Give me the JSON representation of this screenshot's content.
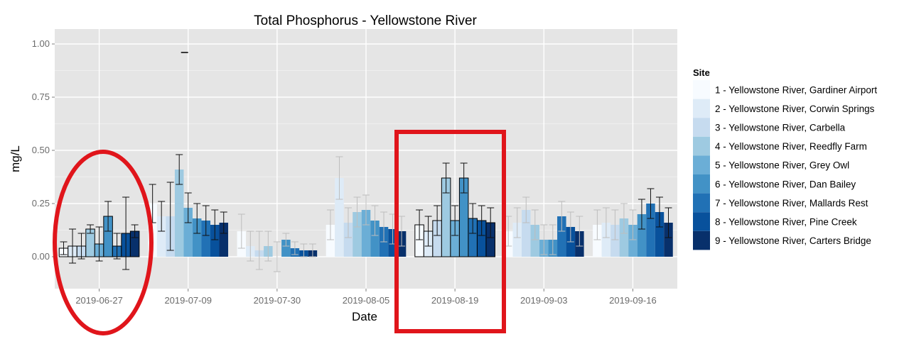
{
  "chart_data": {
    "type": "bar",
    "title": "Total Phosphorus - Yellowstone River",
    "xlabel": "Date",
    "ylabel": "mg/L",
    "ylim": [
      -0.15,
      1.07
    ],
    "yticks": [
      0.0,
      0.25,
      0.5,
      0.75,
      1.0
    ],
    "ytick_labels": [
      "0.00",
      "0.25",
      "0.50",
      "0.75",
      "1.00"
    ],
    "grid": true,
    "legend_title": "Site",
    "legend_position": "right",
    "categories": [
      "2019-06-27",
      "2019-07-09",
      "2019-07-30",
      "2019-08-05",
      "2019-08-19",
      "2019-09-03",
      "2019-09-16"
    ],
    "series": [
      {
        "name": "1 - Yellowstone River, Gardiner Airport",
        "color": "#f7fbff",
        "values": [
          0.04,
          0.25,
          0.12,
          0.15,
          0.15,
          0.12,
          0.15
        ],
        "errors": [
          0.03,
          0.09,
          0.08,
          0.07,
          0.07,
          0.07,
          0.07
        ]
      },
      {
        "name": "2 - Yellowstone River, Corwin Springs",
        "color": "#deebf7",
        "values": [
          0.05,
          0.19,
          0.05,
          0.37,
          0.12,
          0.16,
          0.16
        ],
        "errors": [
          0.08,
          0.07,
          0.07,
          0.1,
          0.07,
          0.07,
          0.07
        ]
      },
      {
        "name": "3 - Yellowstone River, Carbella",
        "color": "#c6dbef",
        "values": [
          0.05,
          0.19,
          0.03,
          0.16,
          0.17,
          0.22,
          0.15
        ],
        "errors": [
          0.06,
          0.16,
          0.09,
          0.07,
          0.07,
          0.06,
          0.07
        ]
      },
      {
        "name": "4 - Yellowstone River, Reedfly Farm",
        "color": "#9ecae1",
        "values": [
          0.13,
          0.41,
          0.05,
          0.21,
          0.37,
          0.15,
          0.18
        ],
        "errors": [
          0.02,
          0.07,
          0.07,
          0.07,
          0.07,
          0.07,
          0.07
        ]
      },
      {
        "name": "5 - Yellowstone River, Grey Owl",
        "color": "#6baed6",
        "values": [
          0.06,
          0.23,
          0.0,
          0.22,
          0.17,
          0.08,
          0.15
        ],
        "errors": [
          0.08,
          0.07,
          0.07,
          0.07,
          0.07,
          0.07,
          0.07
        ]
      },
      {
        "name": "6 - Yellowstone River, Dan Bailey",
        "color": "#4292c6",
        "values": [
          0.19,
          0.18,
          0.08,
          0.17,
          0.37,
          0.08,
          0.2
        ],
        "errors": [
          0.07,
          0.07,
          0.03,
          0.07,
          0.07,
          0.07,
          0.07
        ]
      },
      {
        "name": "7 - Yellowstone River, Mallards Rest",
        "color": "#2171b5",
        "values": [
          0.05,
          0.17,
          0.04,
          0.14,
          0.18,
          0.19,
          0.25
        ],
        "errors": [
          0.06,
          0.07,
          0.03,
          0.07,
          0.07,
          0.07,
          0.07
        ]
      },
      {
        "name": "8 - Yellowstone River, Pine Creek",
        "color": "#08519c",
        "values": [
          0.11,
          0.15,
          0.03,
          0.13,
          0.17,
          0.14,
          0.21
        ],
        "errors": [
          0.17,
          0.07,
          0.03,
          0.07,
          0.07,
          0.07,
          0.07
        ]
      },
      {
        "name": "9 - Yellowstone River, Carters Bridge",
        "color": "#08306b",
        "values": [
          0.12,
          0.16,
          0.03,
          0.12,
          0.16,
          0.12,
          0.16
        ],
        "errors": [
          0.03,
          0.05,
          0.03,
          0.07,
          0.07,
          0.07,
          0.07
        ]
      }
    ],
    "outliers": [
      {
        "x": "2019-07-09",
        "y": 0.96
      }
    ],
    "annotations": [
      {
        "type": "ellipse",
        "target": "2019-06-27",
        "color": "#e0151b"
      },
      {
        "type": "rectangle",
        "target": "2019-08-19",
        "color": "#e0151b"
      }
    ]
  }
}
